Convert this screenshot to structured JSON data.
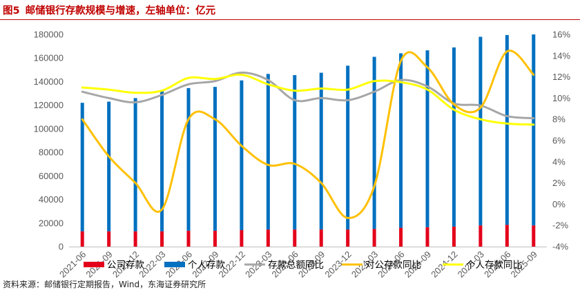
{
  "figure": {
    "label": "图5",
    "title": "邮储银行存款规模与增速，左轴单位：亿元",
    "source": "资料来源：邮储银行定期报告，Wind，东海证券研究所"
  },
  "chart_data": {
    "type": "bar+line",
    "categories": [
      "2021-06",
      "2021-09",
      "2021-12",
      "2022-03",
      "2022-06",
      "2022-09",
      "2022-12",
      "2023-03",
      "2023-06",
      "2023-09",
      "2023-12",
      "2024-03",
      "2024-06",
      "2024-09",
      "2024-12",
      "2025-03",
      "2025-06",
      "2025-09"
    ],
    "y_left": {
      "min": 0,
      "max": 180000,
      "step": 20000,
      "ticks": [
        "0",
        "20000",
        "40000",
        "60000",
        "80000",
        "100000",
        "120000",
        "140000",
        "160000",
        "180000"
      ]
    },
    "y_right": {
      "min": -4,
      "max": 16,
      "step": 2,
      "ticks": [
        "-4%",
        "-2%",
        "0%",
        "2%",
        "4%",
        "6%",
        "8%",
        "10%",
        "12%",
        "14%",
        "16%"
      ]
    },
    "bars": [
      {
        "name": "公司存款",
        "axis": "left",
        "color": "#e3001b",
        "values": [
          13000,
          13000,
          13000,
          13000,
          13500,
          13500,
          14000,
          14500,
          14500,
          14500,
          14500,
          15000,
          16000,
          16500,
          17000,
          18000,
          18500,
          18000
        ]
      },
      {
        "name": "个人存款",
        "axis": "left",
        "color": "#0070c0",
        "values": [
          109000,
          110000,
          113000,
          119000,
          121000,
          122000,
          127000,
          132000,
          131000,
          133000,
          139000,
          146000,
          148000,
          150000,
          152000,
          160000,
          161000,
          162000
        ]
      }
    ],
    "lines": [
      {
        "name": "存款总额同比",
        "axis": "right",
        "color": "#a6a6a6",
        "values": [
          10.6,
          10.0,
          9.6,
          10.3,
          11.3,
          11.6,
          12.4,
          11.7,
          9.8,
          10.0,
          9.8,
          10.6,
          11.7,
          11.1,
          9.5,
          9.3,
          8.3,
          8.1
        ]
      },
      {
        "name": "对公存款同比",
        "axis": "right",
        "color": "#ffc000",
        "values": [
          8.0,
          4.5,
          2.0,
          -0.5,
          8.0,
          8.0,
          5.5,
          3.7,
          3.8,
          2.0,
          -1.3,
          1.7,
          13.5,
          12.9,
          9.4,
          9.1,
          14.4,
          12.2
        ]
      },
      {
        "name": "个人存款同比",
        "axis": "right",
        "color": "#ffff00",
        "values": [
          11.0,
          10.8,
          10.5,
          10.7,
          11.9,
          11.8,
          12.2,
          11.3,
          10.7,
          10.9,
          10.8,
          11.6,
          11.5,
          10.8,
          8.9,
          8.0,
          7.6,
          7.5
        ]
      }
    ],
    "legend_position": "bottom"
  }
}
